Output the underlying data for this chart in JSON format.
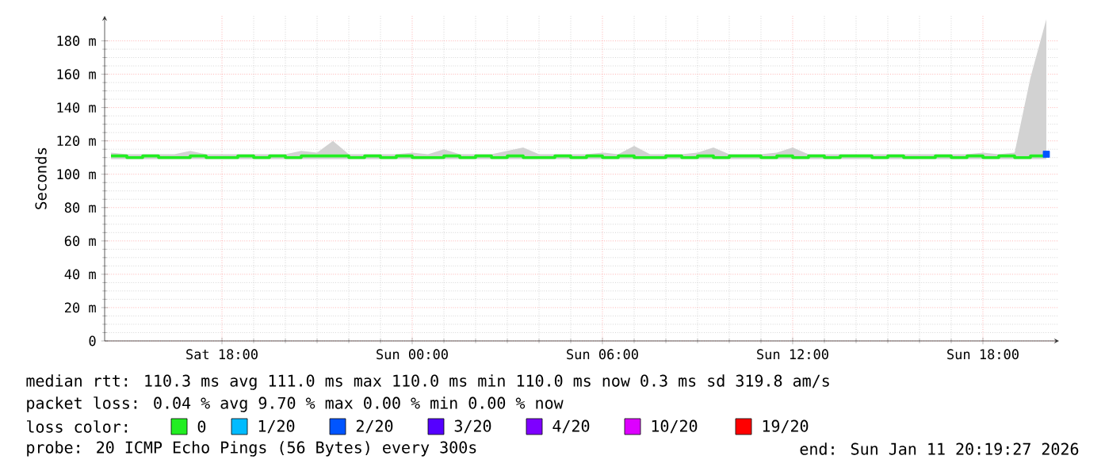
{
  "chart_data": {
    "type": "step",
    "ylabel": "Seconds",
    "xlim": [
      "2026-01-10T14:18",
      "2026-01-11T20:24"
    ],
    "ylim": [
      0,
      195
    ],
    "xticks": [
      {
        "value": "2026-01-10T18:00",
        "label": "Sat 18:00"
      },
      {
        "value": "2026-01-11T00:00",
        "label": "Sun 00:00"
      },
      {
        "value": "2026-01-11T06:00",
        "label": "Sun 06:00"
      },
      {
        "value": "2026-01-11T12:00",
        "label": "Sun 12:00"
      },
      {
        "value": "2026-01-11T18:00",
        "label": "Sun 18:00"
      }
    ],
    "yticks": [
      {
        "value": 0,
        "label": "0"
      },
      {
        "value": 20,
        "label": "20 m"
      },
      {
        "value": 40,
        "label": "40 m"
      },
      {
        "value": 60,
        "label": "60 m"
      },
      {
        "value": 80,
        "label": "80 m"
      },
      {
        "value": 100,
        "label": "100 m"
      },
      {
        "value": 120,
        "label": "120 m"
      },
      {
        "value": 140,
        "label": "140 m"
      },
      {
        "value": 160,
        "label": "160 m"
      },
      {
        "value": 180,
        "label": "180 m"
      }
    ],
    "grid": true,
    "legend": "bottom",
    "legend_title": "loss color:",
    "x": [
      "2026-01-10T14:30",
      "2026-01-10T15:00",
      "2026-01-10T15:30",
      "2026-01-10T16:00",
      "2026-01-10T16:30",
      "2026-01-10T17:00",
      "2026-01-10T17:30",
      "2026-01-10T18:00",
      "2026-01-10T18:30",
      "2026-01-10T19:00",
      "2026-01-10T19:30",
      "2026-01-10T20:00",
      "2026-01-10T20:30",
      "2026-01-10T21:00",
      "2026-01-10T21:30",
      "2026-01-10T22:00",
      "2026-01-10T22:30",
      "2026-01-10T23:00",
      "2026-01-10T23:30",
      "2026-01-11T00:00",
      "2026-01-11T00:30",
      "2026-01-11T01:00",
      "2026-01-11T01:30",
      "2026-01-11T02:00",
      "2026-01-11T02:30",
      "2026-01-11T03:00",
      "2026-01-11T03:30",
      "2026-01-11T04:00",
      "2026-01-11T04:30",
      "2026-01-11T05:00",
      "2026-01-11T05:30",
      "2026-01-11T06:00",
      "2026-01-11T06:30",
      "2026-01-11T07:00",
      "2026-01-11T07:30",
      "2026-01-11T08:00",
      "2026-01-11T08:30",
      "2026-01-11T09:00",
      "2026-01-11T09:30",
      "2026-01-11T10:00",
      "2026-01-11T10:30",
      "2026-01-11T11:00",
      "2026-01-11T11:30",
      "2026-01-11T12:00",
      "2026-01-11T12:30",
      "2026-01-11T13:00",
      "2026-01-11T13:30",
      "2026-01-11T14:00",
      "2026-01-11T14:30",
      "2026-01-11T15:00",
      "2026-01-11T15:30",
      "2026-01-11T16:00",
      "2026-01-11T16:30",
      "2026-01-11T17:00",
      "2026-01-11T17:30",
      "2026-01-11T18:00",
      "2026-01-11T18:30",
      "2026-01-11T19:00",
      "2026-01-11T19:30",
      "2026-01-11T20:00"
    ],
    "series": [
      {
        "name": "0",
        "color": "#22ee22",
        "values": [
          111,
          110,
          111,
          110,
          110,
          111,
          110,
          110,
          111,
          110,
          111,
          110,
          111,
          111,
          111,
          110,
          111,
          110,
          111,
          110,
          110,
          111,
          110,
          111,
          110,
          111,
          110,
          110,
          111,
          110,
          111,
          110,
          111,
          110,
          110,
          111,
          110,
          111,
          110,
          111,
          111,
          110,
          111,
          110,
          111,
          110,
          111,
          111,
          110,
          111,
          110,
          110,
          111,
          110,
          111,
          110,
          111,
          110,
          111,
          112
        ],
        "lower": [
          109,
          109,
          109,
          109,
          109,
          109,
          109,
          109,
          109,
          109,
          109,
          109,
          109,
          109,
          109,
          109,
          109,
          109,
          109,
          109,
          109,
          109,
          109,
          109,
          109,
          109,
          109,
          109,
          109,
          109,
          109,
          109,
          109,
          109,
          109,
          109,
          109,
          109,
          109,
          109,
          109,
          109,
          109,
          109,
          109,
          109,
          109,
          109,
          109,
          109,
          109,
          109,
          109,
          109,
          109,
          109,
          109,
          109,
          109,
          109
        ],
        "upper": [
          113,
          112,
          112,
          112,
          112,
          114,
          112,
          112,
          112,
          112,
          112,
          112,
          114,
          113,
          120,
          112,
          112,
          112,
          112,
          113,
          112,
          115,
          112,
          112,
          112,
          114,
          116,
          112,
          112,
          112,
          112,
          113,
          112,
          117,
          112,
          112,
          112,
          113,
          116,
          112,
          112,
          112,
          113,
          116,
          112,
          112,
          112,
          112,
          112,
          112,
          112,
          112,
          112,
          112,
          112,
          113,
          112,
          113,
          158,
          193
        ]
      },
      {
        "name": "1/20",
        "color": "#00bbff",
        "type": "scatter",
        "values": [
          null,
          null,
          null,
          null,
          null,
          null,
          null,
          null,
          null,
          null,
          null,
          null,
          null,
          null,
          null,
          null,
          null,
          null,
          null,
          null,
          null,
          null,
          null,
          null,
          null,
          null,
          null,
          null,
          null,
          null,
          null,
          null,
          null,
          null,
          null,
          null,
          null,
          null,
          null,
          null,
          null,
          null,
          null,
          null,
          null,
          null,
          null,
          null,
          null,
          null,
          null,
          null,
          null,
          null,
          null,
          null,
          null,
          null,
          null,
          null
        ]
      },
      {
        "name": "2/20",
        "color": "#0055ff",
        "type": "scatter",
        "values": [
          null,
          null,
          null,
          null,
          null,
          null,
          null,
          null,
          null,
          null,
          null,
          null,
          null,
          null,
          null,
          null,
          null,
          null,
          null,
          null,
          null,
          null,
          null,
          null,
          null,
          null,
          null,
          null,
          null,
          null,
          null,
          null,
          null,
          null,
          null,
          null,
          null,
          null,
          null,
          null,
          null,
          null,
          null,
          null,
          null,
          null,
          null,
          null,
          null,
          null,
          null,
          null,
          null,
          null,
          null,
          null,
          null,
          null,
          null,
          112
        ]
      },
      {
        "name": "3/20",
        "color": "#5500ff",
        "type": "scatter",
        "values": [
          null,
          null,
          null,
          null,
          null,
          null,
          null,
          null,
          null,
          null,
          null,
          null,
          null,
          null,
          null,
          null,
          null,
          null,
          null,
          null,
          null,
          null,
          null,
          null,
          null,
          null,
          null,
          null,
          null,
          null,
          null,
          null,
          null,
          null,
          null,
          null,
          null,
          null,
          null,
          null,
          null,
          null,
          null,
          null,
          null,
          null,
          null,
          null,
          null,
          null,
          null,
          null,
          null,
          null,
          null,
          null,
          null,
          null,
          null,
          null
        ]
      },
      {
        "name": "4/20",
        "color": "#7e00ff",
        "type": "scatter",
        "values": [
          null,
          null,
          null,
          null,
          null,
          null,
          null,
          null,
          null,
          null,
          null,
          null,
          null,
          null,
          null,
          null,
          null,
          null,
          null,
          null,
          null,
          null,
          null,
          null,
          null,
          null,
          null,
          null,
          null,
          null,
          null,
          null,
          null,
          null,
          null,
          null,
          null,
          null,
          null,
          null,
          null,
          null,
          null,
          null,
          null,
          null,
          null,
          null,
          null,
          null,
          null,
          null,
          null,
          null,
          null,
          null,
          null,
          null,
          null,
          null
        ]
      },
      {
        "name": "10/20",
        "color": "#dd00ff",
        "type": "scatter",
        "values": [
          null,
          null,
          null,
          null,
          null,
          null,
          null,
          null,
          null,
          null,
          null,
          null,
          null,
          null,
          null,
          null,
          null,
          null,
          null,
          null,
          null,
          null,
          null,
          null,
          null,
          null,
          null,
          null,
          null,
          null,
          null,
          null,
          null,
          null,
          null,
          null,
          null,
          null,
          null,
          null,
          null,
          null,
          null,
          null,
          null,
          null,
          null,
          null,
          null,
          null,
          null,
          null,
          null,
          null,
          null,
          null,
          null,
          null,
          null,
          null
        ]
      },
      {
        "name": "19/20",
        "color": "#ff0000",
        "type": "scatter",
        "values": [
          null,
          null,
          null,
          null,
          null,
          null,
          null,
          null,
          null,
          null,
          null,
          null,
          null,
          null,
          null,
          null,
          null,
          null,
          null,
          null,
          null,
          null,
          null,
          null,
          null,
          null,
          null,
          null,
          null,
          null,
          null,
          null,
          null,
          null,
          null,
          null,
          null,
          null,
          null,
          null,
          null,
          null,
          null,
          null,
          null,
          null,
          null,
          null,
          null,
          null,
          null,
          null,
          null,
          null,
          null,
          null,
          null,
          null,
          null,
          null
        ]
      }
    ],
    "annotations": [
      "median rtt:  110.3 ms avg  111.0 ms max  110.0 ms min  110.0 ms now  0.3 ms sd  319.8   am/s",
      "packet loss: 0.04 % avg  9.70 % max  0.00 % min  0.00 % now",
      "probe:       20 ICMP Echo Pings (56 Bytes) every 300s",
      "end: Sun Jan 11 20:19:27 2026"
    ]
  }
}
